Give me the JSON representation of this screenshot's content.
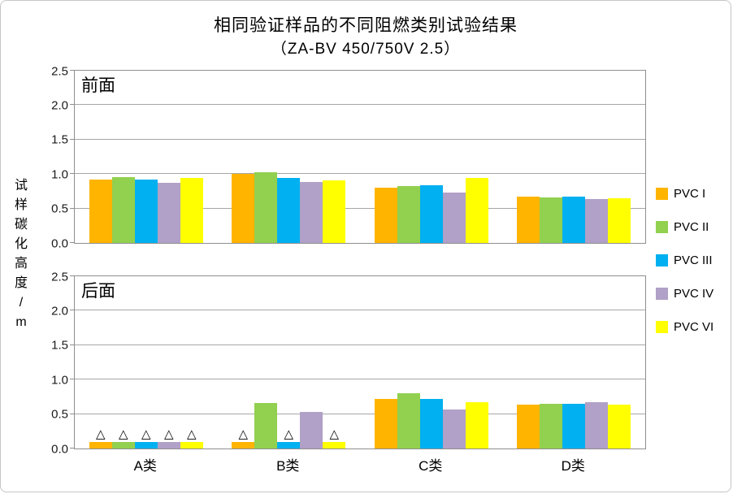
{
  "title": {
    "line1": "相同验证样品的不同阻燃类别试验结果",
    "line2": "（ZA-BV 450/750V 2.5）"
  },
  "y_axis_title": "试样碳化高度/m",
  "marker_glyph": "△",
  "colors": {
    "pvc1_orange": "#FFB400",
    "pvc2_green": "#92D050",
    "pvc3_blue": "#00B0F0",
    "pvc4_purple": "#B1A0C7",
    "pvc6_yellow": "#FFFF00",
    "gridline": "#A6A6A6",
    "panel_border": "#8F8F8F"
  },
  "legend": {
    "items": [
      {
        "label": "PVC I",
        "color": "#FFB400"
      },
      {
        "label": "PVC II",
        "color": "#92D050"
      },
      {
        "label": "PVC III",
        "color": "#00B0F0"
      },
      {
        "label": "PVC IV",
        "color": "#B1A0C7"
      },
      {
        "label": "PVC VI",
        "color": "#FFFF00"
      }
    ]
  },
  "chart_data": [
    {
      "type": "bar",
      "panel_label": "前面",
      "categories": [
        "A类",
        "B类",
        "C类",
        "D类"
      ],
      "ylim": [
        0,
        2.5
      ],
      "yticks": [
        "0.0",
        "0.5",
        "1.0",
        "1.5",
        "2.0",
        "2.5"
      ],
      "grid": true,
      "legend_position": "right",
      "series": [
        {
          "name": "PVC I",
          "color": "#FFB400",
          "values": [
            0.92,
            1.0,
            0.8,
            0.67
          ],
          "markers": [
            false,
            false,
            false,
            false
          ]
        },
        {
          "name": "PVC II",
          "color": "#92D050",
          "values": [
            0.95,
            1.03,
            0.82,
            0.66
          ],
          "markers": [
            false,
            false,
            false,
            false
          ]
        },
        {
          "name": "PVC III",
          "color": "#00B0F0",
          "values": [
            0.92,
            0.94,
            0.84,
            0.67
          ],
          "markers": [
            false,
            false,
            false,
            false
          ]
        },
        {
          "name": "PVC IV",
          "color": "#B1A0C7",
          "values": [
            0.87,
            0.88,
            0.73,
            0.64
          ],
          "markers": [
            false,
            false,
            false,
            false
          ]
        },
        {
          "name": "PVC VI",
          "color": "#FFFF00",
          "values": [
            0.94,
            0.91,
            0.94,
            0.65
          ],
          "markers": [
            false,
            false,
            false,
            false
          ]
        }
      ]
    },
    {
      "type": "bar",
      "panel_label": "后面",
      "categories": [
        "A类",
        "B类",
        "C类",
        "D类"
      ],
      "ylim": [
        0,
        2.5
      ],
      "yticks": [
        "0.0",
        "0.5",
        "1.0",
        "1.5",
        "2.0",
        "2.5"
      ],
      "grid": true,
      "legend_position": "right",
      "series": [
        {
          "name": "PVC I",
          "color": "#FFB400",
          "values": [
            0.1,
            0.1,
            0.72,
            0.64
          ],
          "markers": [
            true,
            true,
            false,
            false
          ]
        },
        {
          "name": "PVC II",
          "color": "#92D050",
          "values": [
            0.1,
            0.66,
            0.8,
            0.65
          ],
          "markers": [
            true,
            false,
            false,
            false
          ]
        },
        {
          "name": "PVC III",
          "color": "#00B0F0",
          "values": [
            0.1,
            0.1,
            0.72,
            0.65
          ],
          "markers": [
            true,
            true,
            false,
            false
          ]
        },
        {
          "name": "PVC IV",
          "color": "#B1A0C7",
          "values": [
            0.1,
            0.53,
            0.57,
            0.67
          ],
          "markers": [
            true,
            false,
            false,
            false
          ]
        },
        {
          "name": "PVC VI",
          "color": "#FFFF00",
          "values": [
            0.1,
            0.1,
            0.67,
            0.64
          ],
          "markers": [
            true,
            true,
            false,
            false
          ]
        }
      ]
    }
  ]
}
